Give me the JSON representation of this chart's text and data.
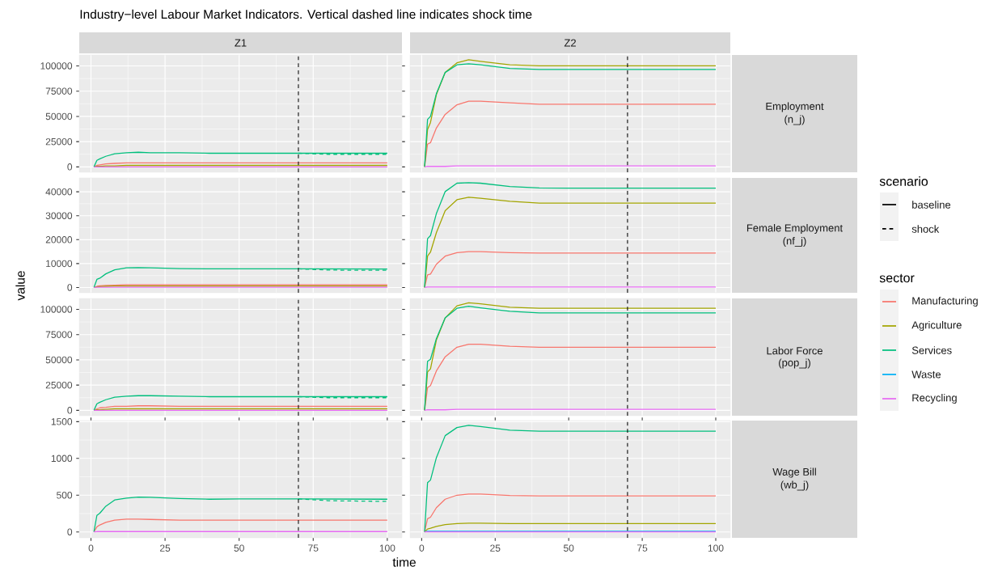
{
  "chart_data": [
    {
      "type": "other",
      "title": "Industry−level Labour Market Indicators. Vertical dashed line indicates shock time",
      "xlabel": "time",
      "ylabel": "value",
      "legend": "right",
      "legend_title": "scenario",
      "series": [
        {
          "name": "baseline",
          "color": "#000000",
          "line_style": "solid"
        },
        {
          "name": "shock",
          "color": "#000000",
          "line_style": "dashed"
        }
      ]
    },
    {
      "type": "line",
      "title": "Z1",
      "grid": true,
      "tick_labels": "y",
      "xlim": [
        -3.95,
        104.95
      ],
      "xticks": [
        0,
        25,
        50,
        75,
        100
      ],
      "ylim": [
        -5300,
        110800
      ],
      "yticks": [
        0,
        25000,
        50000,
        75000,
        100000
      ],
      "ref_lines": [
        {
          "axis": "x",
          "value": 70,
          "color": "#000000",
          "line_style": "dashed"
        }
      ],
      "x": [
        1,
        2,
        3,
        5,
        8,
        12,
        16,
        20,
        30,
        40,
        50,
        70,
        100
      ],
      "series": [
        {
          "color": "#F8766D",
          "line_style": "solid",
          "values": [
            0,
            1500,
            2000,
            3000,
            3500,
            4000,
            4000,
            4000,
            4000,
            4000,
            4000,
            4000,
            4000
          ]
        },
        {
          "color": "#A3A500",
          "line_style": "solid",
          "values": [
            0,
            500,
            500,
            1000,
            1000,
            1500,
            1500,
            1500,
            1500,
            1500,
            1500,
            1500,
            1500
          ]
        },
        {
          "color": "#00BF7D",
          "line_style": "solid",
          "values": [
            0,
            6500,
            8000,
            10500,
            13000,
            14000,
            14500,
            14000,
            14000,
            13500,
            13500,
            13500,
            13500
          ]
        },
        {
          "color": "#E76BF3",
          "line_style": "solid",
          "values": [
            0,
            0,
            0,
            0,
            0,
            0,
            0,
            0,
            0,
            0,
            0,
            0,
            0
          ]
        },
        {
          "color": "#00BF7D",
          "line_style": "dashed",
          "x": [
            70,
            80,
            90,
            100
          ],
          "values": [
            13500,
            12500,
            12500,
            12500
          ]
        }
      ]
    },
    {
      "type": "line",
      "title": "Z2",
      "annotations": [
        "Employment",
        "(n_j)"
      ],
      "grid": true,
      "tick_labels": false,
      "xlim": [
        -3.95,
        104.95
      ],
      "xticks": [
        0,
        25,
        50,
        75,
        100
      ],
      "ylim": [
        -5300,
        110800
      ],
      "yticks": [
        0,
        25000,
        50000,
        75000,
        100000
      ],
      "ref_lines": [
        {
          "axis": "x",
          "value": 70,
          "color": "#000000",
          "line_style": "dashed"
        }
      ],
      "x": [
        1,
        2,
        3,
        5,
        8,
        12,
        16,
        20,
        30,
        40,
        50,
        70,
        100
      ],
      "series": [
        {
          "color": "#F8766D",
          "line_style": "solid",
          "values": [
            0,
            22500,
            24000,
            38500,
            52000,
            61500,
            65000,
            65000,
            63500,
            62000,
            62000,
            62000,
            62000
          ]
        },
        {
          "color": "#A3A500",
          "line_style": "solid",
          "values": [
            0,
            37000,
            44000,
            71500,
            93500,
            103000,
            106000,
            104500,
            101000,
            100000,
            100000,
            100000,
            100000
          ]
        },
        {
          "color": "#00BF7D",
          "line_style": "solid",
          "values": [
            0,
            47000,
            50000,
            72500,
            93500,
            101000,
            102000,
            101000,
            97500,
            96500,
            96500,
            96500,
            96500
          ]
        },
        {
          "color": "#E76BF3",
          "line_style": "solid",
          "values": [
            0,
            500,
            500,
            500,
            500,
            1000,
            1000,
            1000,
            1000,
            1000,
            1000,
            1000,
            1000
          ]
        }
      ]
    },
    {
      "type": "line",
      "grid": true,
      "tick_labels": "y",
      "xlim": [
        -3.95,
        104.95
      ],
      "xticks": [
        0,
        25,
        50,
        75,
        100
      ],
      "ylim": [
        -2200,
        45800
      ],
      "yticks": [
        0,
        10000,
        20000,
        30000,
        40000
      ],
      "ref_lines": [
        {
          "axis": "x",
          "value": 70,
          "color": "#000000",
          "line_style": "dashed"
        }
      ],
      "x": [
        1,
        2,
        3,
        5,
        8,
        12,
        16,
        20,
        30,
        40,
        50,
        70,
        100
      ],
      "series": [
        {
          "color": "#F8766D",
          "line_style": "solid",
          "values": [
            0,
            500,
            700,
            900,
            1000,
            1100,
            1100,
            1100,
            1100,
            1100,
            1100,
            1100,
            1100
          ]
        },
        {
          "color": "#A3A500",
          "line_style": "solid",
          "values": [
            0,
            300,
            400,
            500,
            600,
            600,
            600,
            600,
            600,
            600,
            600,
            600,
            600
          ]
        },
        {
          "color": "#00BF7D",
          "line_style": "solid",
          "values": [
            0,
            3400,
            3900,
            5700,
            7400,
            8200,
            8300,
            8200,
            7900,
            7800,
            7800,
            7800,
            7700
          ]
        },
        {
          "color": "#E76BF3",
          "line_style": "solid",
          "values": [
            0,
            100,
            100,
            100,
            100,
            100,
            100,
            100,
            100,
            100,
            100,
            100,
            100
          ]
        },
        {
          "color": "#00BF7D",
          "line_style": "dashed",
          "x": [
            70,
            80,
            90,
            100
          ],
          "values": [
            7800,
            7300,
            7200,
            7200
          ]
        }
      ]
    },
    {
      "type": "line",
      "annotations": [
        "Female Employment",
        "(nf_j)"
      ],
      "grid": true,
      "tick_labels": false,
      "xlim": [
        -3.95,
        104.95
      ],
      "xticks": [
        0,
        25,
        50,
        75,
        100
      ],
      "ylim": [
        -2200,
        45800
      ],
      "yticks": [
        0,
        10000,
        20000,
        30000,
        40000
      ],
      "ref_lines": [
        {
          "axis": "x",
          "value": 70,
          "color": "#000000",
          "line_style": "dashed"
        }
      ],
      "x": [
        1,
        2,
        3,
        5,
        8,
        12,
        16,
        20,
        30,
        40,
        50,
        70,
        100
      ],
      "series": [
        {
          "color": "#F8766D",
          "line_style": "solid",
          "values": [
            0,
            5300,
            5600,
            9700,
            13100,
            14600,
            15000,
            15000,
            14600,
            14400,
            14400,
            14400,
            14400
          ]
        },
        {
          "color": "#A3A500",
          "line_style": "solid",
          "values": [
            0,
            13100,
            14800,
            22900,
            32100,
            36700,
            37700,
            37300,
            36000,
            35300,
            35300,
            35300,
            35300
          ]
        },
        {
          "color": "#00BF7D",
          "line_style": "solid",
          "values": [
            0,
            20400,
            21700,
            30900,
            40100,
            43600,
            43800,
            43600,
            42200,
            41600,
            41500,
            41500,
            41500
          ]
        },
        {
          "color": "#E76BF3",
          "line_style": "solid",
          "values": [
            0,
            200,
            200,
            200,
            200,
            200,
            200,
            200,
            200,
            200,
            200,
            200,
            200
          ]
        }
      ]
    },
    {
      "type": "line",
      "grid": true,
      "tick_labels": "y",
      "xlim": [
        -3.95,
        104.95
      ],
      "xticks": [
        0,
        25,
        50,
        75,
        100
      ],
      "ylim": [
        -5300,
        110800
      ],
      "yticks": [
        0,
        25000,
        50000,
        75000,
        100000
      ],
      "ref_lines": [
        {
          "axis": "x",
          "value": 70,
          "color": "#000000",
          "line_style": "dashed"
        }
      ],
      "x": [
        1,
        2,
        3,
        5,
        8,
        12,
        16,
        20,
        30,
        40,
        50,
        70,
        100
      ],
      "series": [
        {
          "color": "#F8766D",
          "line_style": "solid",
          "values": [
            0,
            1500,
            2500,
            3000,
            4000,
            4000,
            4500,
            4500,
            4000,
            4000,
            4000,
            4000,
            4000
          ]
        },
        {
          "color": "#A3A500",
          "line_style": "solid",
          "values": [
            0,
            500,
            500,
            1000,
            1500,
            1500,
            1500,
            1500,
            1500,
            1500,
            1500,
            1500,
            1500
          ]
        },
        {
          "color": "#00BF7D",
          "line_style": "solid",
          "values": [
            0,
            6500,
            8000,
            10500,
            13000,
            14000,
            14500,
            14500,
            14000,
            13500,
            13500,
            13500,
            13500
          ]
        },
        {
          "color": "#E76BF3",
          "line_style": "solid",
          "values": [
            0,
            0,
            0,
            0,
            0,
            0,
            0,
            0,
            0,
            0,
            0,
            0,
            0
          ]
        },
        {
          "color": "#00BF7D",
          "line_style": "dashed",
          "x": [
            70,
            80,
            90,
            100
          ],
          "values": [
            13500,
            12500,
            12500,
            12500
          ]
        }
      ]
    },
    {
      "type": "line",
      "annotations": [
        "Labor Force",
        "(pop_j)"
      ],
      "grid": true,
      "tick_labels": false,
      "xlim": [
        -3.95,
        104.95
      ],
      "xticks": [
        0,
        25,
        50,
        75,
        100
      ],
      "ylim": [
        -5300,
        110800
      ],
      "yticks": [
        0,
        25000,
        50000,
        75000,
        100000
      ],
      "ref_lines": [
        {
          "axis": "x",
          "value": 70,
          "color": "#000000",
          "line_style": "dashed"
        }
      ],
      "x": [
        1,
        2,
        3,
        5,
        8,
        12,
        16,
        20,
        30,
        40,
        50,
        70,
        100
      ],
      "series": [
        {
          "color": "#F8766D",
          "line_style": "solid",
          "values": [
            0,
            22500,
            24500,
            39000,
            53000,
            62500,
            65500,
            65500,
            63500,
            62500,
            62500,
            62500,
            62500
          ]
        },
        {
          "color": "#A3A500",
          "line_style": "solid",
          "values": [
            0,
            38000,
            41000,
            69500,
            91500,
            103500,
            106500,
            105500,
            102000,
            101000,
            101000,
            101000,
            101000
          ]
        },
        {
          "color": "#00BF7D",
          "line_style": "solid",
          "values": [
            0,
            48500,
            50500,
            71000,
            91500,
            101000,
            103000,
            101500,
            98000,
            96500,
            96500,
            96500,
            96500
          ]
        },
        {
          "color": "#E76BF3",
          "line_style": "solid",
          "values": [
            0,
            500,
            500,
            500,
            500,
            1000,
            1000,
            1000,
            1000,
            1000,
            1000,
            1000,
            1000
          ]
        }
      ]
    },
    {
      "type": "line",
      "grid": true,
      "xlim": [
        -3.95,
        104.95
      ],
      "xticks": [
        0,
        25,
        50,
        75,
        100
      ],
      "ylim": [
        -80,
        1515
      ],
      "yticks": [
        0,
        500,
        1000,
        1500
      ],
      "ref_lines": [
        {
          "axis": "x",
          "value": 70,
          "color": "#000000",
          "line_style": "dashed"
        }
      ],
      "x": [
        1,
        2,
        3,
        5,
        8,
        12,
        16,
        20,
        30,
        40,
        50,
        70,
        100
      ],
      "series": [
        {
          "color": "#F8766D",
          "line_style": "solid",
          "values": [
            0,
            70,
            95,
            130,
            160,
            175,
            175,
            170,
            160,
            160,
            160,
            160,
            160
          ]
        },
        {
          "color": "#00BF7D",
          "line_style": "solid",
          "values": [
            0,
            225,
            255,
            350,
            435,
            460,
            475,
            470,
            455,
            445,
            450,
            450,
            445
          ]
        },
        {
          "color": "#E76BF3",
          "line_style": "solid",
          "values": [
            0,
            5,
            5,
            5,
            5,
            5,
            5,
            5,
            5,
            5,
            5,
            5,
            5
          ]
        },
        {
          "color": "#00BF7D",
          "line_style": "dashed",
          "x": [
            70,
            80,
            90,
            100
          ],
          "values": [
            450,
            425,
            420,
            415
          ]
        }
      ]
    },
    {
      "type": "line",
      "annotations": [
        "Wage Bill",
        "(wb_j)"
      ],
      "legend": "right",
      "legend_title": "sector",
      "grid": true,
      "tick_labels": "x",
      "xlim": [
        -3.95,
        104.95
      ],
      "xticks": [
        0,
        25,
        50,
        75,
        100
      ],
      "ylim": [
        -80,
        1515
      ],
      "yticks": [
        0,
        500,
        1000,
        1500
      ],
      "ref_lines": [
        {
          "axis": "x",
          "value": 70,
          "color": "#000000",
          "line_style": "dashed"
        }
      ],
      "x": [
        1,
        2,
        3,
        5,
        8,
        12,
        16,
        20,
        30,
        40,
        50,
        70,
        100
      ],
      "series": [
        {
          "name": "Manufacturing",
          "color": "#F8766D",
          "line_style": "solid",
          "values": [
            0,
            180,
            200,
            330,
            445,
            500,
            515,
            515,
            495,
            490,
            490,
            490,
            490
          ]
        },
        {
          "name": "Agriculture",
          "color": "#A3A500",
          "line_style": "solid",
          "values": [
            0,
            40,
            50,
            75,
            100,
            115,
            120,
            120,
            115,
            115,
            115,
            115,
            115
          ]
        },
        {
          "name": "Services",
          "color": "#00BF7D",
          "line_style": "solid",
          "values": [
            0,
            670,
            705,
            1010,
            1310,
            1420,
            1450,
            1435,
            1385,
            1370,
            1370,
            1370,
            1370
          ]
        },
        {
          "name": "Waste",
          "color": "#00B0F6",
          "line_style": "solid",
          "values": [
            0,
            10,
            10,
            10,
            10,
            10,
            10,
            10,
            10,
            10,
            10,
            10,
            10
          ]
        },
        {
          "name": "Recycling",
          "color": "#E76BF3",
          "line_style": "solid",
          "values": [
            0,
            0,
            0,
            0,
            0,
            0,
            0,
            0,
            0,
            0,
            0,
            0,
            0
          ]
        }
      ]
    }
  ]
}
